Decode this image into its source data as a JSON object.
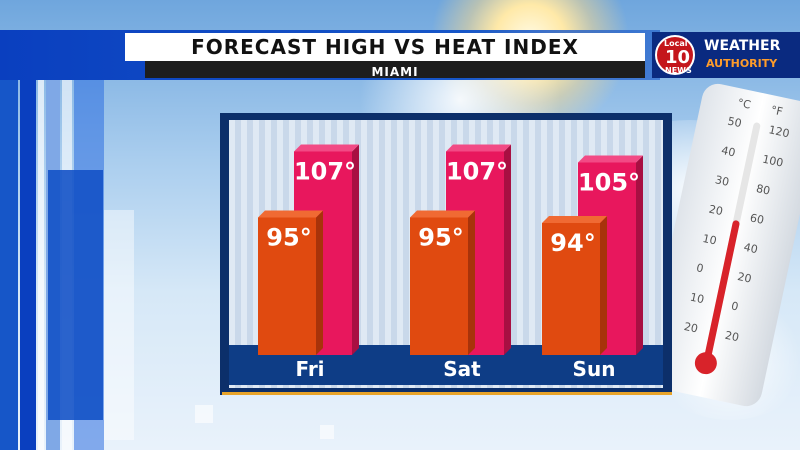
{
  "header": {
    "title": "FORECAST HIGH VS HEAT INDEX",
    "subtitle": "MIAMI"
  },
  "logo": {
    "local": "Local",
    "number": "10",
    "news": "NEWS",
    "weather": "WEATHER",
    "authority": "AUTHORITY"
  },
  "thermometer": {
    "celsius_label": "°C",
    "fahrenheit_label": "°F",
    "celsius_ticks": [
      "50",
      "40",
      "30",
      "20",
      "10",
      "0",
      "10",
      "20"
    ],
    "fahrenheit_ticks": [
      "120",
      "100",
      "80",
      "60",
      "40",
      "20",
      "0",
      "20"
    ]
  },
  "colors": {
    "forecast_high": "#e04a10",
    "heat_index": "#e8175d",
    "frame": "#0c2f6a",
    "brand_blue": "#0a3fbf"
  },
  "chart_data": {
    "type": "bar",
    "title": "FORECAST HIGH VS HEAT INDEX",
    "subtitle": "MIAMI",
    "categories": [
      "Fri",
      "Sat",
      "Sun"
    ],
    "series": [
      {
        "values": [
          95,
          95,
          94
        ],
        "labels": [
          "95°",
          "95°",
          "94°"
        ]
      },
      {
        "values": [
          107,
          107,
          105
        ],
        "labels": [
          "107°",
          "107°",
          "105°"
        ]
      }
    ],
    "ylim": [
      70,
      110
    ],
    "grid": false
  }
}
